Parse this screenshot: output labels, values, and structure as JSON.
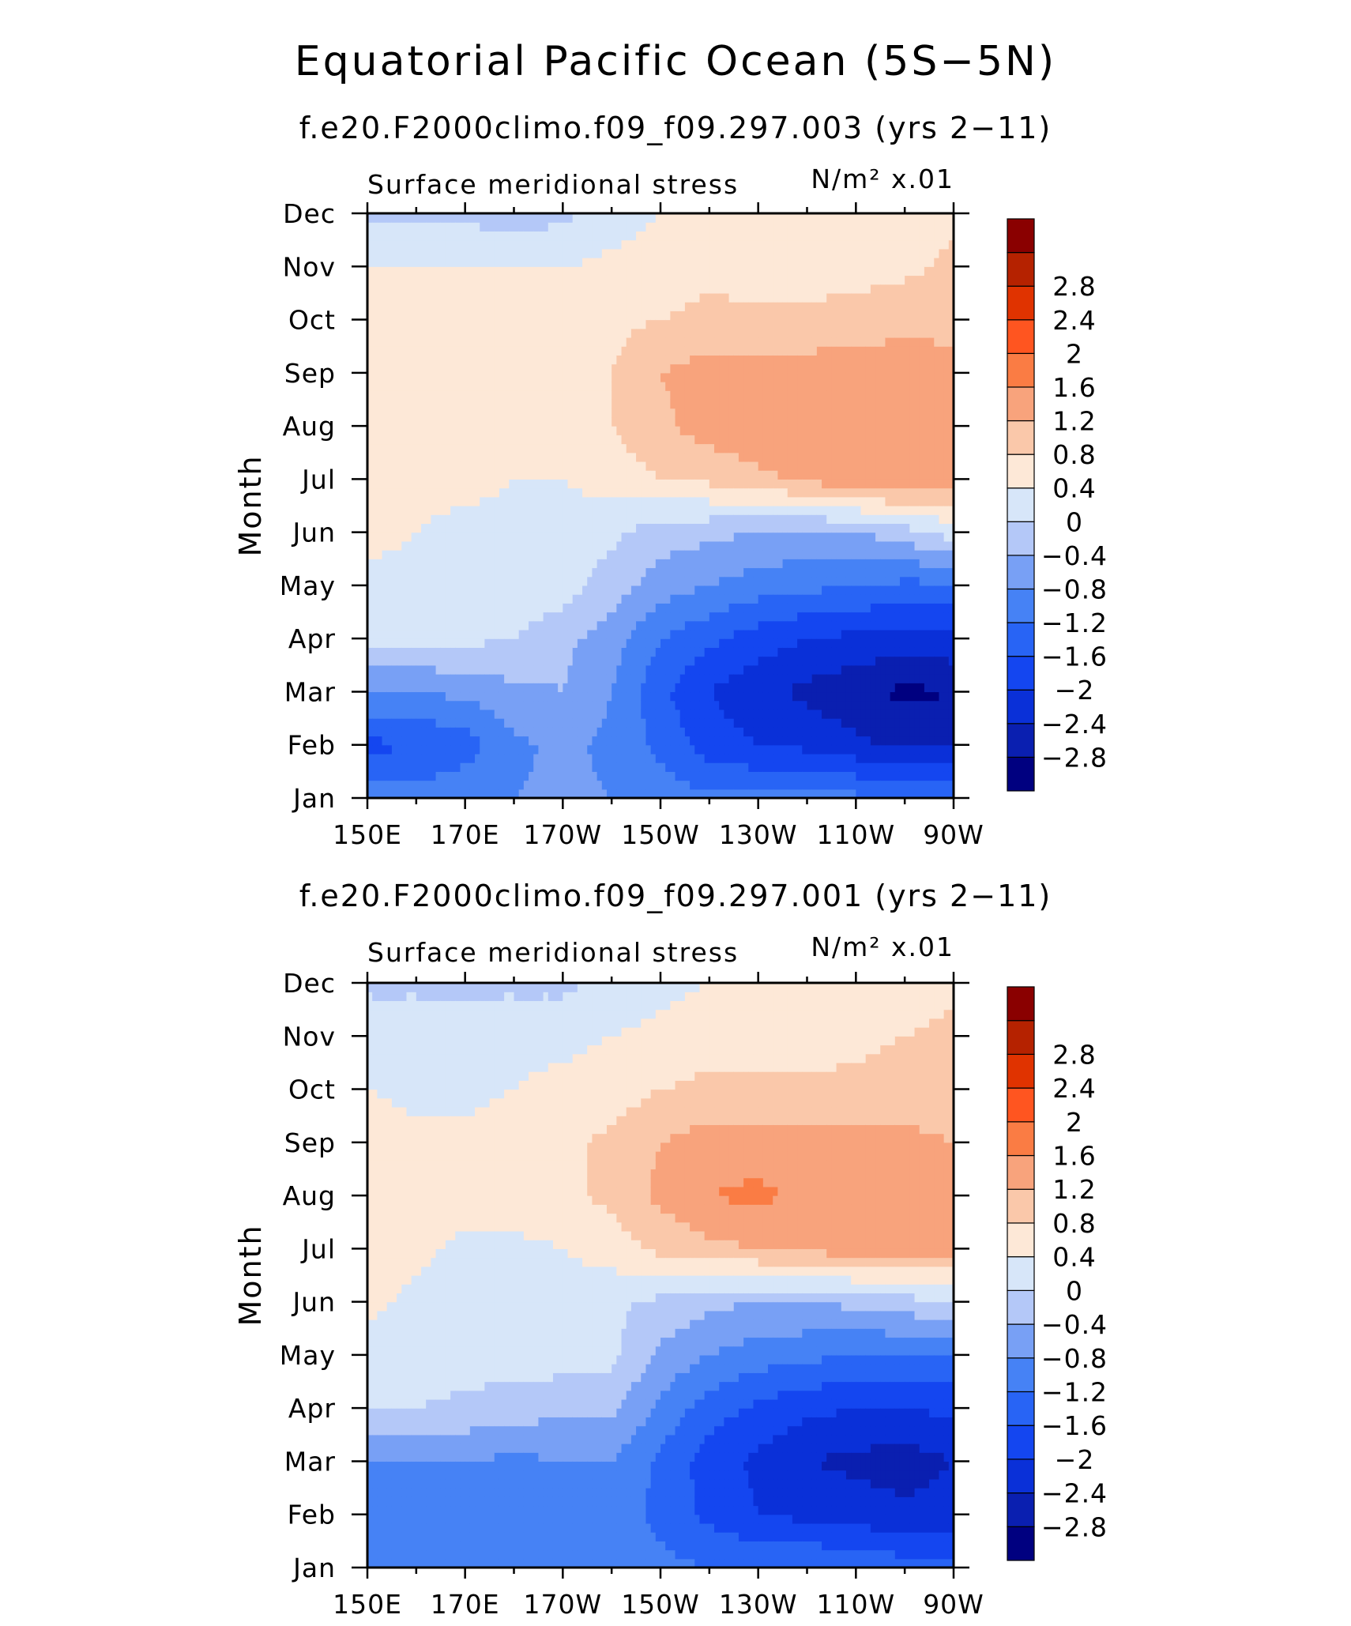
{
  "figure": {
    "title": "Equatorial Pacific Ocean (5S−5N)"
  },
  "colorbar": {
    "levels": [
      -2.8,
      -2.4,
      -2,
      -1.6,
      -1.2,
      -0.8,
      -0.4,
      0,
      0.4,
      0.8,
      1.2,
      1.6,
      2,
      2.4,
      2.8
    ],
    "labels": [
      "2.8",
      "2.4",
      "2",
      "1.6",
      "1.2",
      "0.8",
      "0.4",
      "0",
      "−0.4",
      "−0.8",
      "−1.2",
      "−1.6",
      "−2",
      "−2.4",
      "−2.8"
    ],
    "colors_low_to_high": [
      "#000080",
      "#0a1fb0",
      "#0a30d8",
      "#1446f0",
      "#2864f5",
      "#4682f5",
      "#78a0f5",
      "#b4c8f8",
      "#d7e6f9",
      "#fde8d7",
      "#fac8aa",
      "#f8a37c",
      "#fa7c44",
      "#ff5520",
      "#e03300",
      "#b52200",
      "#8a0000"
    ]
  },
  "chart_data": [
    {
      "type": "heatmap",
      "subtitle": "f.e20.F2000climo.f09_f09.297.003 (yrs 2−11)",
      "field_label": "Surface meridional stress",
      "units_label": "N/m² x.01",
      "ylabel": "Month",
      "xlabel": "",
      "x_ticklabels": [
        "150E",
        "170E",
        "170W",
        "150W",
        "130W",
        "110W",
        "90W"
      ],
      "y_ticklabels": [
        "Jan",
        "Feb",
        "Mar",
        "Apr",
        "May",
        "Jun",
        "Jul",
        "Aug",
        "Sep",
        "Oct",
        "Nov",
        "Dec"
      ],
      "x_range_deg_east": [
        150,
        270
      ],
      "y_range_months": [
        1,
        12
      ],
      "x": [
        150,
        160,
        170,
        180,
        190,
        200,
        210,
        220,
        230,
        240,
        250,
        260,
        270
      ],
      "y": [
        "Jan",
        "Feb",
        "Mar",
        "Apr",
        "May",
        "Jun",
        "Jul",
        "Aug",
        "Sep",
        "Oct",
        "Nov",
        "Dec"
      ],
      "z": [
        [
          -1.0,
          -1.0,
          -0.9,
          -0.8,
          -0.7,
          -0.8,
          -1.0,
          -1.1,
          -1.1,
          -1.0,
          -1.1,
          -1.2,
          -1.3
        ],
        [
          -1.7,
          -1.6,
          -1.4,
          -0.9,
          -0.7,
          -0.9,
          -1.3,
          -1.8,
          -2.0,
          -2.1,
          -2.3,
          -2.5,
          -2.5
        ],
        [
          -0.8,
          -0.8,
          -0.7,
          -0.5,
          -0.4,
          -0.8,
          -1.5,
          -2.0,
          -2.3,
          -2.5,
          -2.7,
          -2.9,
          -2.8
        ],
        [
          0.1,
          0.1,
          0.1,
          0.0,
          -0.3,
          -0.6,
          -1.2,
          -1.5,
          -1.8,
          -2.0,
          -2.1,
          -2.2,
          -2.1
        ],
        [
          0.3,
          0.3,
          0.3,
          0.3,
          0.2,
          -0.2,
          -0.6,
          -0.8,
          -1.0,
          -1.1,
          -1.2,
          -1.3,
          -1.3
        ],
        [
          0.5,
          0.4,
          0.3,
          0.3,
          0.2,
          0.1,
          -0.2,
          -0.3,
          -0.4,
          -0.5,
          -0.4,
          -0.2,
          0.2
        ],
        [
          0.6,
          0.5,
          0.5,
          0.4,
          0.4,
          0.6,
          0.8,
          0.9,
          1.1,
          1.3,
          1.5,
          1.6,
          1.3
        ],
        [
          0.6,
          0.6,
          0.6,
          0.6,
          0.6,
          0.8,
          1.1,
          1.4,
          1.5,
          1.5,
          1.5,
          1.5,
          1.4
        ],
        [
          0.6,
          0.5,
          0.6,
          0.6,
          0.6,
          0.8,
          1.2,
          1.4,
          1.4,
          1.4,
          1.4,
          1.4,
          1.3
        ],
        [
          0.5,
          0.5,
          0.6,
          0.6,
          0.6,
          0.7,
          0.8,
          0.9,
          0.9,
          0.9,
          1.0,
          1.1,
          1.1
        ],
        [
          0.4,
          0.4,
          0.4,
          0.4,
          0.4,
          0.5,
          0.6,
          0.7,
          0.6,
          0.6,
          0.6,
          0.7,
          0.9
        ],
        [
          -0.1,
          -0.1,
          -0.1,
          -0.2,
          -0.1,
          0.2,
          0.4,
          0.5,
          0.6,
          0.6,
          0.6,
          0.6,
          0.7
        ]
      ]
    },
    {
      "type": "heatmap",
      "subtitle": "f.e20.F2000climo.f09_f09.297.001 (yrs 2−11)",
      "field_label": "Surface meridional stress",
      "units_label": "N/m² x.01",
      "ylabel": "Month",
      "xlabel": "",
      "x_ticklabels": [
        "150E",
        "170E",
        "170W",
        "150W",
        "130W",
        "110W",
        "90W"
      ],
      "y_ticklabels": [
        "Jan",
        "Feb",
        "Mar",
        "Apr",
        "May",
        "Jun",
        "Jul",
        "Aug",
        "Sep",
        "Oct",
        "Nov",
        "Dec"
      ],
      "x_range_deg_east": [
        150,
        270
      ],
      "y_range_months": [
        1,
        12
      ],
      "x": [
        150,
        160,
        170,
        180,
        190,
        200,
        210,
        220,
        230,
        240,
        250,
        260,
        270
      ],
      "y": [
        "Jan",
        "Feb",
        "Mar",
        "Apr",
        "May",
        "Jun",
        "Jul",
        "Aug",
        "Sep",
        "Oct",
        "Nov",
        "Dec"
      ],
      "z": [
        [
          -1.0,
          -0.9,
          -0.8,
          -0.9,
          -1.0,
          -1.0,
          -1.1,
          -1.2,
          -1.2,
          -1.2,
          -1.3,
          -1.4,
          -1.4
        ],
        [
          -1.0,
          -1.0,
          -1.0,
          -1.1,
          -1.0,
          -1.0,
          -1.3,
          -1.7,
          -2.0,
          -2.1,
          -2.2,
          -2.3,
          -2.2
        ],
        [
          -0.8,
          -0.8,
          -0.8,
          -0.9,
          -0.8,
          -0.8,
          -1.3,
          -1.8,
          -2.1,
          -2.4,
          -2.5,
          -2.6,
          -2.4
        ],
        [
          0.0,
          0.0,
          -0.1,
          -0.2,
          -0.3,
          -0.3,
          -0.9,
          -1.4,
          -1.7,
          -1.9,
          -2.0,
          -2.0,
          -1.9
        ],
        [
          0.2,
          0.2,
          0.2,
          0.2,
          0.2,
          0.1,
          -0.5,
          -0.8,
          -1.0,
          -1.1,
          -1.2,
          -1.2,
          -1.2
        ],
        [
          0.5,
          0.3,
          0.2,
          0.2,
          0.2,
          0.1,
          -0.1,
          -0.3,
          -0.4,
          -0.4,
          -0.3,
          -0.2,
          0.1
        ],
        [
          0.6,
          0.5,
          0.3,
          0.3,
          0.4,
          0.6,
          0.9,
          1.1,
          1.2,
          1.3,
          1.4,
          1.5,
          1.3
        ],
        [
          0.7,
          0.6,
          0.6,
          0.6,
          0.7,
          0.9,
          1.3,
          1.6,
          1.7,
          1.5,
          1.4,
          1.4,
          1.3
        ],
        [
          0.6,
          0.5,
          0.5,
          0.6,
          0.7,
          0.9,
          1.2,
          1.4,
          1.4,
          1.3,
          1.3,
          1.3,
          1.2
        ],
        [
          0.4,
          0.3,
          0.3,
          0.4,
          0.5,
          0.6,
          0.8,
          0.9,
          0.9,
          0.9,
          0.9,
          1.0,
          1.0
        ],
        [
          0.3,
          0.3,
          0.3,
          0.3,
          0.3,
          0.4,
          0.5,
          0.6,
          0.6,
          0.6,
          0.7,
          0.8,
          0.9
        ],
        [
          -0.1,
          -0.1,
          -0.1,
          -0.1,
          -0.1,
          0.1,
          0.3,
          0.4,
          0.5,
          0.5,
          0.6,
          0.6,
          0.7
        ]
      ]
    }
  ]
}
